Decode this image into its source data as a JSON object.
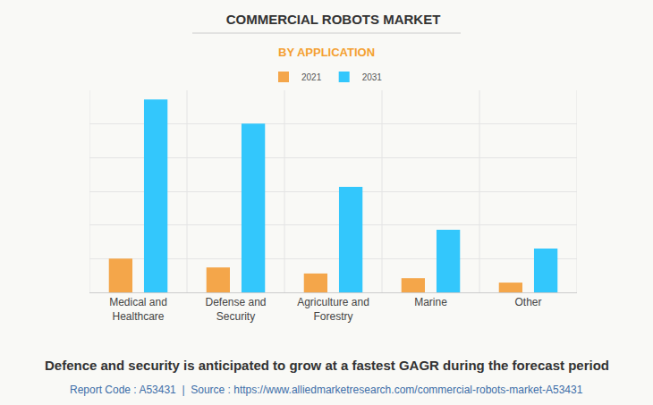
{
  "chart_data": {
    "type": "bar",
    "title": "COMMERCIAL ROBOTS MARKET",
    "subtitle": "BY APPLICATION",
    "categories": [
      "Medical and Healthcare",
      "Defense and Security",
      "Agriculture and Forestry",
      "Marine",
      "Other"
    ],
    "series": [
      {
        "name": "2021",
        "color": "#f4a64a",
        "values": [
          1.0,
          0.74,
          0.56,
          0.42,
          0.29
        ]
      },
      {
        "name": "2031",
        "color": "#33c7fc",
        "values": [
          5.73,
          5.01,
          3.13,
          1.86,
          1.3
        ]
      }
    ],
    "ylim": [
      0,
      6
    ],
    "yticks": [
      0,
      1,
      2,
      3,
      4,
      5,
      6
    ],
    "grid": true,
    "legend": "top",
    "tick_labels": "x",
    "annotations": [
      "Defence and security is anticipated to grow at a fastest GAGR during the forecast period",
      "Report Code : A53431  |  Source : https://www.alliedmarketresearch.com/commercial-robots-market-A53431"
    ]
  }
}
